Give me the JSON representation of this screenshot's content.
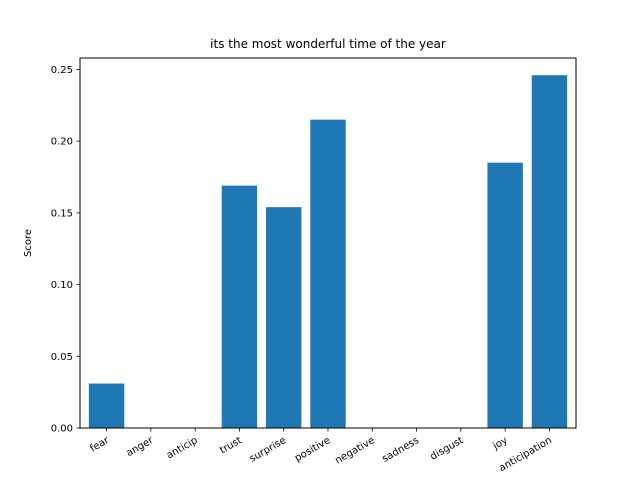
{
  "chart_data": {
    "type": "bar",
    "title": "its the most wonderful time of the year",
    "xlabel": "",
    "ylabel": "Score",
    "categories": [
      "fear",
      "anger",
      "anticip",
      "trust",
      "surprise",
      "positive",
      "negative",
      "sadness",
      "disgust",
      "joy",
      "anticipation"
    ],
    "values": [
      0.031,
      0,
      0,
      0.169,
      0.154,
      0.215,
      0,
      0,
      0,
      0.185,
      0.246
    ],
    "ylim": [
      0,
      0.258
    ],
    "yticks": [
      0.0,
      0.05,
      0.1,
      0.15,
      0.2,
      0.25
    ],
    "ytick_labels": [
      "0.00",
      "0.05",
      "0.10",
      "0.15",
      "0.20",
      "0.25"
    ],
    "bar_color": "#1f77b4",
    "grid": false,
    "legend": "none"
  }
}
